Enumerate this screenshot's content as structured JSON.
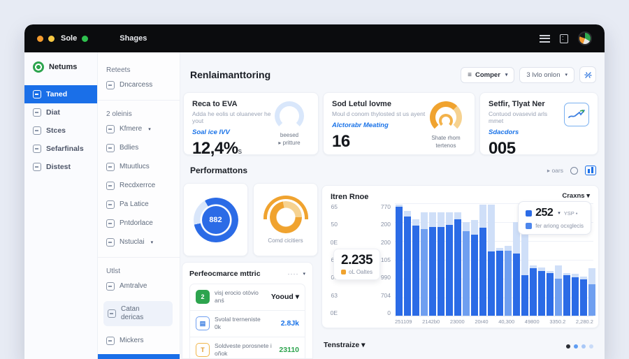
{
  "window": {
    "app_name": "Sole",
    "tab_label": "Shages",
    "traffic_colors": [
      "#f49b2e",
      "#f7c843",
      "#2fc14e"
    ]
  },
  "sidebar1": {
    "logo_label": "Netums",
    "items": [
      {
        "label": "Taned",
        "icon": "sync-icon",
        "active": true
      },
      {
        "label": "Diat",
        "icon": "document-icon",
        "active": false
      },
      {
        "label": "Stces",
        "icon": "chat-icon",
        "active": false
      },
      {
        "label": "Sefarfinals",
        "icon": "cloud-icon",
        "active": false
      },
      {
        "label": "Distest",
        "icon": "warning-icon",
        "active": false
      }
    ]
  },
  "sidebar2": {
    "items": [
      {
        "type": "header",
        "label": "Reteets"
      },
      {
        "type": "item",
        "label": "Dncarcess",
        "icon": "panel-icon"
      },
      {
        "type": "divider"
      },
      {
        "type": "header",
        "label": "2 oleinis"
      },
      {
        "type": "item",
        "label": "Kfmere",
        "icon": "gauge-icon",
        "caret": true
      },
      {
        "type": "item",
        "label": "Bdlies",
        "icon": "card-icon"
      },
      {
        "type": "item",
        "label": "Mtuutlucs",
        "icon": "book-icon"
      },
      {
        "type": "item",
        "label": "Recdxerrce",
        "icon": "checkbox-icon"
      },
      {
        "type": "item",
        "label": "Pa Latice",
        "icon": "grid-icon"
      },
      {
        "type": "item",
        "label": "Pntdorlace",
        "icon": "report-icon"
      },
      {
        "type": "item",
        "label": "Nstuclai",
        "icon": "pie-icon",
        "caret": true
      },
      {
        "type": "divider"
      },
      {
        "type": "header",
        "label": "Utlst"
      },
      {
        "type": "item",
        "label": "Amtralve",
        "icon": "folder-icon"
      },
      {
        "type": "item",
        "label": "Catan dericas",
        "icon": "flag-icon",
        "highlight": true
      },
      {
        "type": "item",
        "label": "Mickers",
        "icon": "tag-icon"
      }
    ]
  },
  "header": {
    "title": "Renlaimanttoring",
    "filter_button_label": "Comper",
    "view_dropdown_label": "3 lvlo onlon"
  },
  "stat_cards": [
    {
      "title": "Reca to EVA",
      "subtitle": "Adda he eolis ut oluanever he yout",
      "link": "Soal ice IVV",
      "value": "12,4%",
      "value_suffix": "s",
      "gauge_caption_1": "beesed",
      "gauge_caption_2": "▸ pritture"
    },
    {
      "title": "Sod Letul lovme",
      "subtitle": "Moul d conom thylosted st us ayent",
      "link": "Alctorabr Meating",
      "value": "16",
      "gauge_caption_1": "Shate rhom",
      "gauge_caption_2": "tertenos"
    },
    {
      "title": "Setfir, Tlyat Ner",
      "subtitle": "Contuod ovasevid arls mmet",
      "link": "Sdacdors",
      "value": "005"
    }
  ],
  "section": {
    "title": "Performattons",
    "right_label": "▸ oars"
  },
  "perf_panel": {
    "title": "Perfeocmarce mttric",
    "menu_dots": "····",
    "rows": [
      {
        "icon": "green-arrow-icon",
        "tone": "green",
        "icon_char": "2",
        "text": "visj erocio otòvio anś",
        "text2": "",
        "value": "Yooud ▾",
        "value_tone": "dark"
      },
      {
        "icon": "blue-doc-icon",
        "tone": "blue",
        "icon_char": "▤",
        "text": "Svolal trerneniste",
        "text2": "0k",
        "value": "2.8Jk",
        "value_tone": "blue"
      },
      {
        "icon": "yellow-box-icon",
        "tone": "yellow",
        "icon_char": "T",
        "text": "Soldveste porosnete i",
        "text2": "oñok",
        "value": "23110",
        "value_tone": "green"
      }
    ]
  },
  "footer": {
    "label": "Tenstraize ▾",
    "dots": [
      "#2c2f36",
      "#5e9cf2",
      "#a9c8f7",
      "#c9dbf8"
    ]
  },
  "chart_data": [
    {
      "type": "bar",
      "title": "Itren Rnoe",
      "menu_label": "Craxns ▾",
      "legend": {
        "value": "252",
        "caret": "▾",
        "tag": "YSP ▪",
        "series2": "fer ariong ocxglecis"
      },
      "tooltip": {
        "value": "2.235",
        "label": "oL Oaltes"
      },
      "y_axis_outer": [
        "65",
        "50",
        "0E",
        "60",
        "00",
        "63",
        "0E"
      ],
      "y_axis_inner": [
        "770",
        "200",
        "200",
        "105",
        "990",
        "704",
        "0"
      ],
      "x_labels": [
        "251109",
        "2142b0",
        "23000",
        "20r40",
        "40,300",
        "49800",
        "3350.2",
        "2,280.2"
      ],
      "ylim": [
        0,
        100
      ],
      "grid": true,
      "legend_position": "top-right",
      "bars": [
        {
          "fg": 97,
          "bg": 99,
          "tone": "dark"
        },
        {
          "fg": 88,
          "bg": 93,
          "tone": "dark"
        },
        {
          "fg": 80,
          "bg": 86,
          "tone": "dark"
        },
        {
          "fg": 77,
          "bg": 92,
          "tone": "mid"
        },
        {
          "fg": 79,
          "bg": 92,
          "tone": "dark"
        },
        {
          "fg": 79,
          "bg": 92,
          "tone": "dark"
        },
        {
          "fg": 81,
          "bg": 92,
          "tone": "dark"
        },
        {
          "fg": 86,
          "bg": 92,
          "tone": "dark"
        },
        {
          "fg": 75,
          "bg": 83,
          "tone": "mid"
        },
        {
          "fg": 72,
          "bg": 85,
          "tone": "dark"
        },
        {
          "fg": 78,
          "bg": 99,
          "tone": "dark"
        },
        {
          "fg": 57,
          "bg": 99,
          "tone": "dark"
        },
        {
          "fg": 58,
          "bg": 60,
          "tone": "dark"
        },
        {
          "fg": 58,
          "bg": 62,
          "tone": "mid"
        },
        {
          "fg": 55,
          "bg": 83,
          "tone": "dark"
        },
        {
          "fg": 36,
          "bg": 78,
          "tone": "dark"
        },
        {
          "fg": 42,
          "bg": 45,
          "tone": "dark"
        },
        {
          "fg": 40,
          "bg": 43,
          "tone": "dark"
        },
        {
          "fg": 38,
          "bg": 40,
          "tone": "dark"
        },
        {
          "fg": 33,
          "bg": 45,
          "tone": "mid"
        },
        {
          "fg": 36,
          "bg": 38,
          "tone": "dark"
        },
        {
          "fg": 34,
          "bg": 37,
          "tone": "dark"
        },
        {
          "fg": 32,
          "bg": 35,
          "tone": "dark"
        },
        {
          "fg": 28,
          "bg": 42,
          "tone": "mid"
        }
      ]
    },
    {
      "type": "donut",
      "value": "882",
      "segments": [
        {
          "color": "#2b6be6",
          "pct": 80
        },
        {
          "color": "#d9e6fa",
          "pct": 20
        }
      ],
      "start_deg": -30
    },
    {
      "type": "donut",
      "label": "Comd cicitiers",
      "segments": [
        {
          "color": "#f0a32f",
          "pct": 72
        },
        {
          "color": "#f6d290",
          "pct": 28
        }
      ],
      "start_deg": 90
    }
  ]
}
